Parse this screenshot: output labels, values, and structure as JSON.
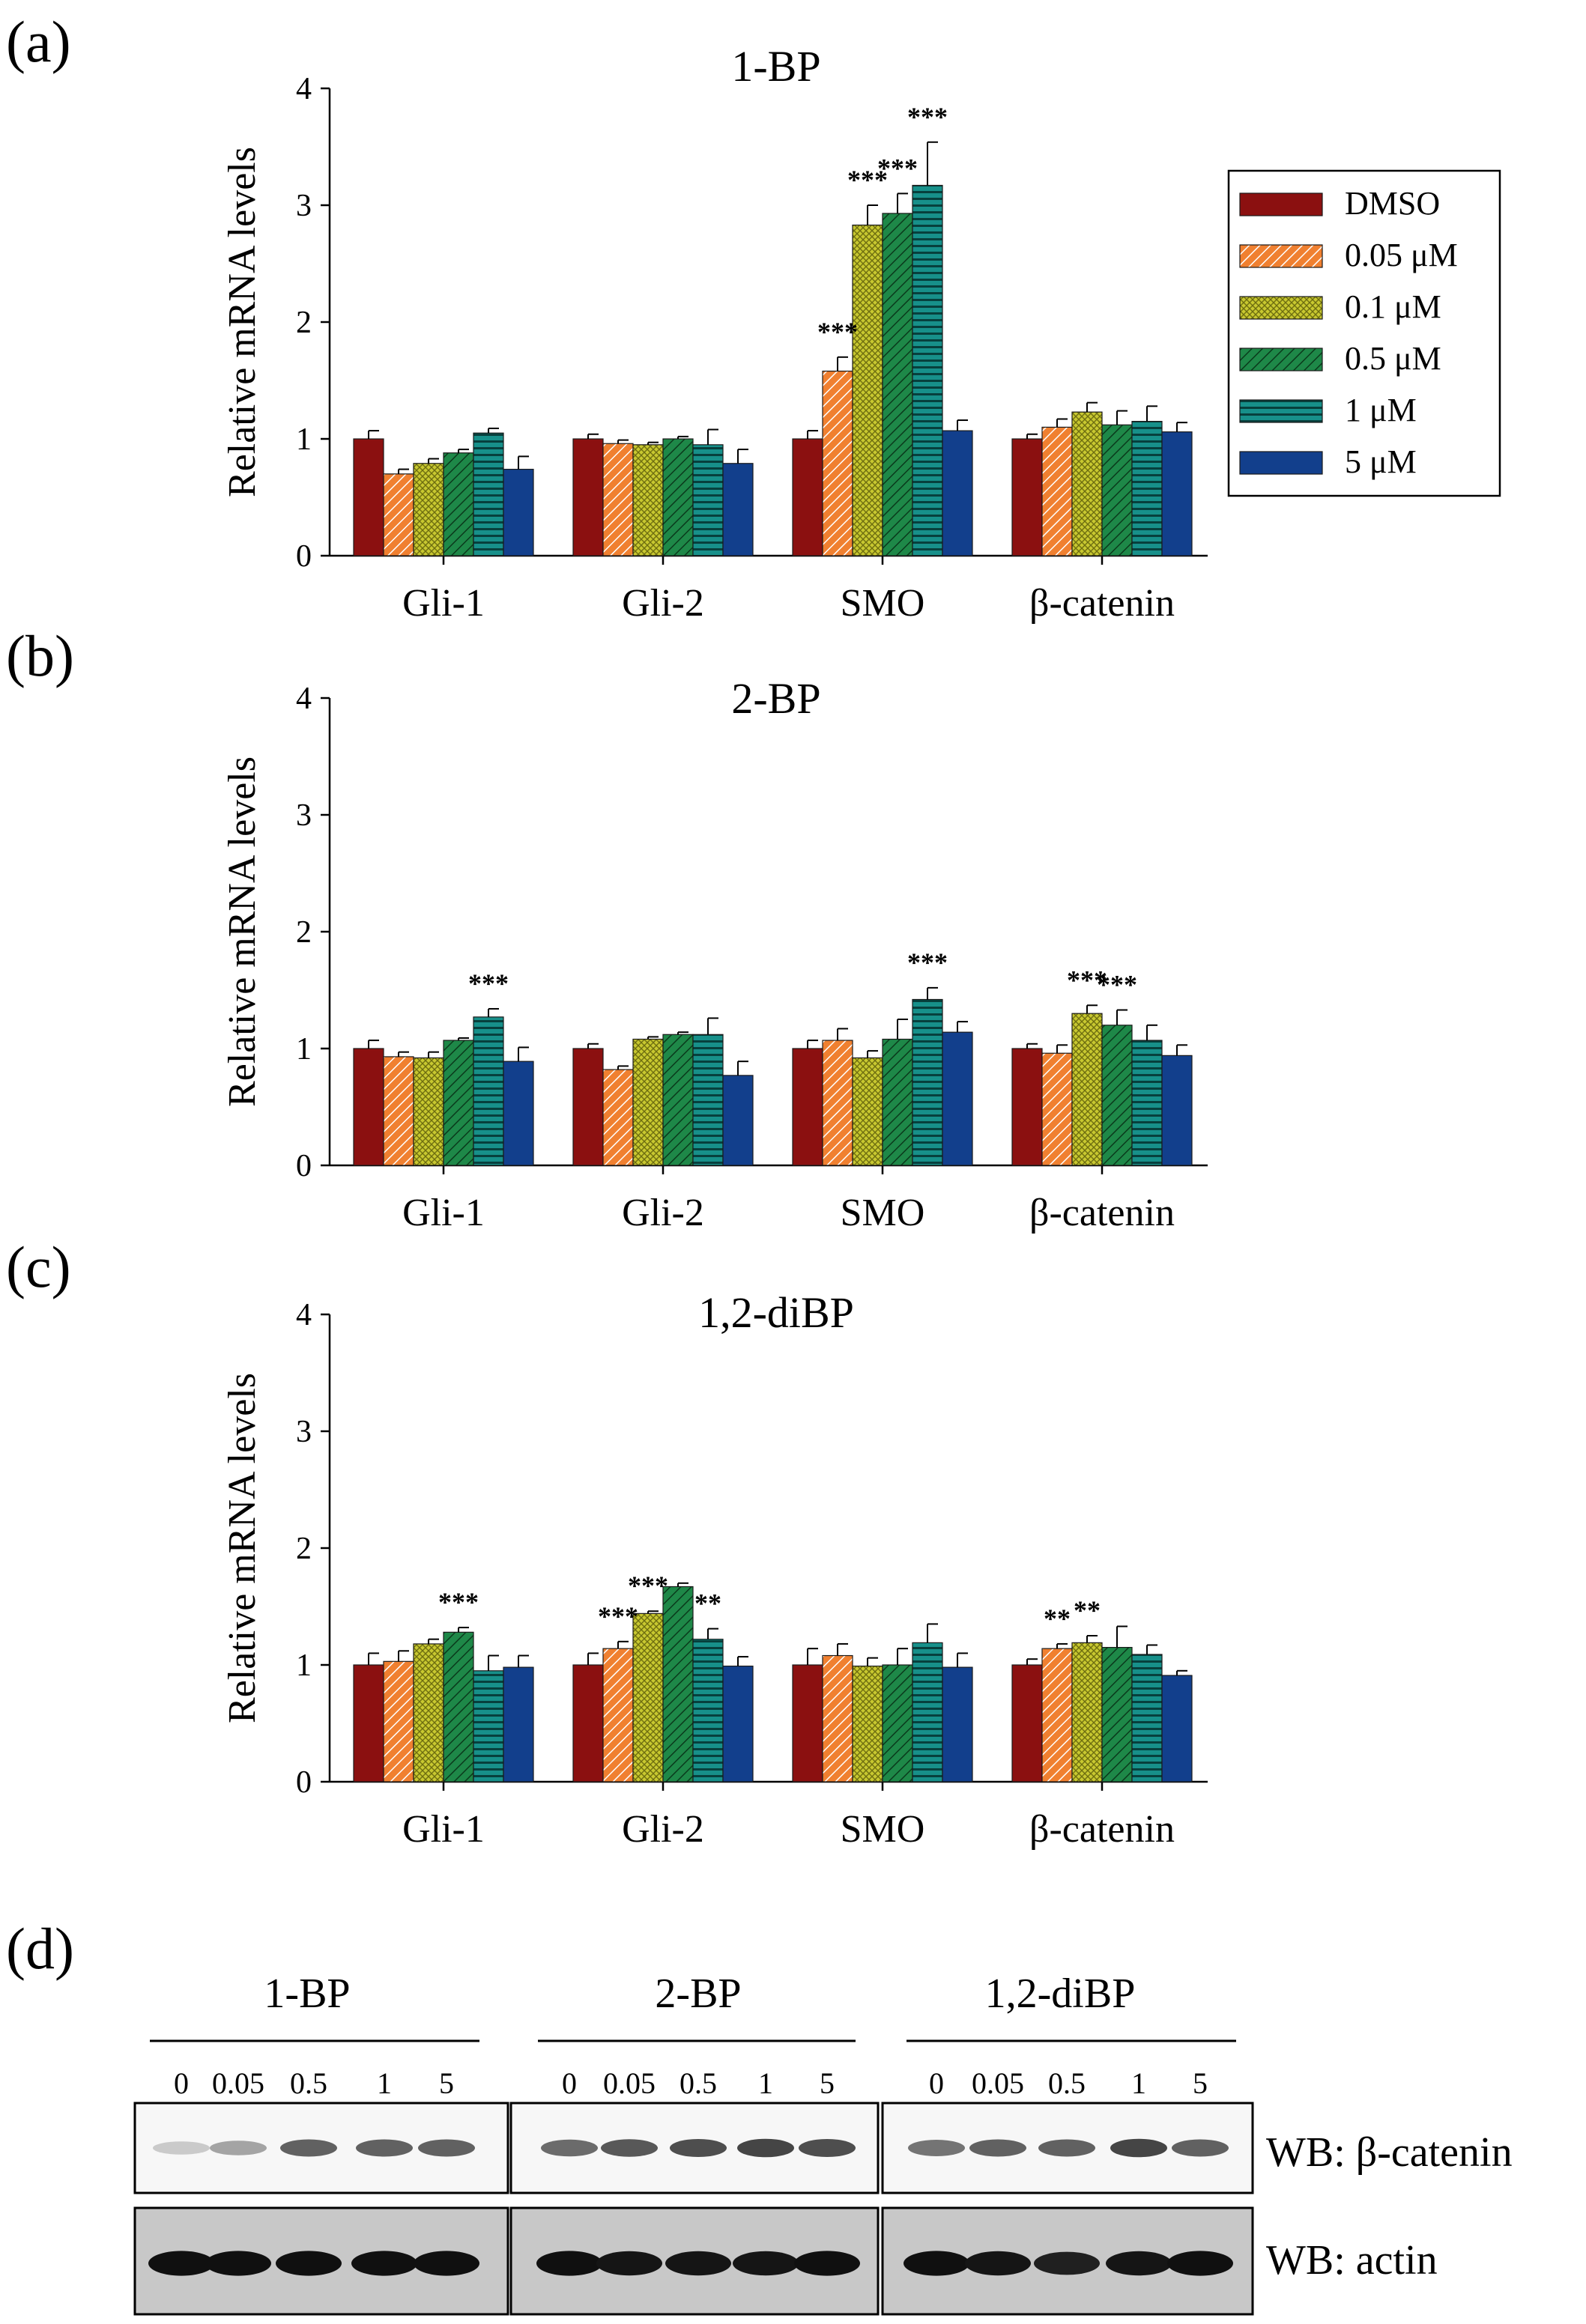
{
  "panel_labels": {
    "a": "(a)",
    "b": "(b)",
    "c": "(c)",
    "d": "(d)"
  },
  "legend": [
    {
      "label": "DMSO",
      "color": "#8B1010",
      "pattern": "solid"
    },
    {
      "label": "0.05 μM",
      "color": "#F08030",
      "pattern": "diag"
    },
    {
      "label": "0.1 μM",
      "color": "#C8C830",
      "pattern": "cross"
    },
    {
      "label": "0.5 μM",
      "color": "#1E8848",
      "pattern": "diag"
    },
    {
      "label": "1 μM",
      "color": "#17908A",
      "pattern": "horiz"
    },
    {
      "label": "5 μM",
      "color": "#123F8C",
      "pattern": "solid"
    }
  ],
  "chart_data": [
    {
      "type": "bar",
      "title": "1-BP",
      "ylabel": "Relative mRNA levels",
      "ylim": [
        0,
        4
      ],
      "yticks": [
        "0",
        "1",
        "2",
        "3",
        "4"
      ],
      "categories": [
        "Gli-1",
        "Gli-2",
        "SMO",
        "β-catenin"
      ],
      "series": [
        {
          "name": "DMSO",
          "values": [
            1.0,
            1.0,
            1.0,
            1.0
          ],
          "errors": [
            0.07,
            0.04,
            0.07,
            0.04
          ]
        },
        {
          "name": "0.05 μM",
          "values": [
            0.7,
            0.96,
            1.58,
            1.1
          ],
          "errors": [
            0.04,
            0.03,
            0.12,
            0.07
          ]
        },
        {
          "name": "0.1 μM",
          "values": [
            0.79,
            0.95,
            2.83,
            1.23
          ],
          "errors": [
            0.04,
            0.02,
            0.17,
            0.08
          ]
        },
        {
          "name": "0.5 μM",
          "values": [
            0.88,
            1.0,
            2.93,
            1.12
          ],
          "errors": [
            0.03,
            0.02,
            0.17,
            0.12
          ]
        },
        {
          "name": "1 μM",
          "values": [
            1.05,
            0.95,
            3.17,
            1.15
          ],
          "errors": [
            0.04,
            0.13,
            0.37,
            0.13
          ]
        },
        {
          "name": "5 μM",
          "values": [
            0.74,
            0.79,
            1.07,
            1.06
          ],
          "errors": [
            0.11,
            0.12,
            0.09,
            0.08
          ]
        }
      ],
      "annotations": [
        {
          "group": 2,
          "series": 1,
          "text": "***"
        },
        {
          "group": 2,
          "series": 2,
          "text": "***"
        },
        {
          "group": 2,
          "series": 3,
          "text": "***"
        },
        {
          "group": 2,
          "series": 4,
          "text": "***"
        }
      ]
    },
    {
      "type": "bar",
      "title": "2-BP",
      "ylabel": "Relative mRNA levels",
      "ylim": [
        0,
        4
      ],
      "yticks": [
        "0",
        "1",
        "2",
        "3",
        "4"
      ],
      "categories": [
        "Gli-1",
        "Gli-2",
        "SMO",
        "β-catenin"
      ],
      "series": [
        {
          "name": "DMSO",
          "values": [
            1.0,
            1.0,
            1.0,
            1.0
          ],
          "errors": [
            0.07,
            0.04,
            0.07,
            0.04
          ]
        },
        {
          "name": "0.05 μM",
          "values": [
            0.93,
            0.82,
            1.07,
            0.96
          ],
          "errors": [
            0.04,
            0.03,
            0.1,
            0.07
          ]
        },
        {
          "name": "0.1 μM",
          "values": [
            0.92,
            1.08,
            0.92,
            1.3
          ],
          "errors": [
            0.05,
            0.02,
            0.06,
            0.07
          ]
        },
        {
          "name": "0.5 μM",
          "values": [
            1.07,
            1.12,
            1.08,
            1.2
          ],
          "errors": [
            0.02,
            0.02,
            0.17,
            0.13
          ]
        },
        {
          "name": "1 μM",
          "values": [
            1.27,
            1.12,
            1.42,
            1.07
          ],
          "errors": [
            0.07,
            0.14,
            0.1,
            0.13
          ]
        },
        {
          "name": "5 μM",
          "values": [
            0.89,
            0.77,
            1.14,
            0.94
          ],
          "errors": [
            0.12,
            0.12,
            0.09,
            0.09
          ]
        }
      ],
      "annotations": [
        {
          "group": 0,
          "series": 4,
          "text": "***"
        },
        {
          "group": 2,
          "series": 4,
          "text": "***"
        },
        {
          "group": 3,
          "series": 2,
          "text": "***"
        },
        {
          "group": 3,
          "series": 3,
          "text": "***"
        }
      ]
    },
    {
      "type": "bar",
      "title": "1,2-diBP",
      "ylabel": "Relative mRNA levels",
      "ylim": [
        0,
        4
      ],
      "yticks": [
        "0",
        "1",
        "2",
        "3",
        "4"
      ],
      "categories": [
        "Gli-1",
        "Gli-2",
        "SMO",
        "β-catenin"
      ],
      "series": [
        {
          "name": "DMSO",
          "values": [
            1.0,
            1.0,
            1.0,
            1.0
          ],
          "errors": [
            0.1,
            0.1,
            0.14,
            0.05
          ]
        },
        {
          "name": "0.05 μM",
          "values": [
            1.03,
            1.14,
            1.08,
            1.14
          ],
          "errors": [
            0.09,
            0.06,
            0.1,
            0.04
          ]
        },
        {
          "name": "0.1 μM",
          "values": [
            1.18,
            1.44,
            0.99,
            1.19
          ],
          "errors": [
            0.04,
            0.02,
            0.07,
            0.06
          ]
        },
        {
          "name": "0.5 μM",
          "values": [
            1.28,
            1.67,
            1.0,
            1.15
          ],
          "errors": [
            0.04,
            0.03,
            0.14,
            0.18
          ]
        },
        {
          "name": "1 μM",
          "values": [
            0.95,
            1.22,
            1.19,
            1.09
          ],
          "errors": [
            0.13,
            0.09,
            0.16,
            0.08
          ]
        },
        {
          "name": "5 μM",
          "values": [
            0.98,
            0.99,
            0.98,
            0.91
          ],
          "errors": [
            0.1,
            0.08,
            0.12,
            0.04
          ]
        }
      ],
      "annotations": [
        {
          "group": 0,
          "series": 3,
          "text": "***"
        },
        {
          "group": 1,
          "series": 1,
          "text": "***"
        },
        {
          "group": 1,
          "series": 2,
          "text": "***"
        },
        {
          "group": 1,
          "series": 4,
          "text": "**"
        },
        {
          "group": 3,
          "series": 1,
          "text": "**"
        },
        {
          "group": 3,
          "series": 2,
          "text": "**"
        }
      ]
    }
  ],
  "western": {
    "groups": [
      {
        "title": "1-BP",
        "lanes": [
          "0",
          "0.05",
          "0.5",
          "1",
          "5"
        ],
        "beta_intensity": [
          0.15,
          0.35,
          0.7,
          0.7,
          0.7
        ],
        "actin_intensity": [
          0.95,
          0.95,
          0.95,
          0.95,
          0.95
        ]
      },
      {
        "title": "2-BP",
        "lanes": [
          "0",
          "0.05",
          "0.5",
          "1",
          "5"
        ],
        "beta_intensity": [
          0.65,
          0.75,
          0.8,
          0.85,
          0.8
        ],
        "actin_intensity": [
          0.95,
          0.9,
          0.9,
          0.9,
          0.95
        ]
      },
      {
        "title": "1,2-diBP",
        "lanes": [
          "0",
          "0.05",
          "0.5",
          "1",
          "5"
        ],
        "beta_intensity": [
          0.6,
          0.7,
          0.7,
          0.85,
          0.7
        ],
        "actin_intensity": [
          0.95,
          0.9,
          0.8,
          0.9,
          0.95
        ]
      }
    ],
    "labels": {
      "beta": "WB: β-catenin",
      "actin": "WB: actin"
    }
  }
}
